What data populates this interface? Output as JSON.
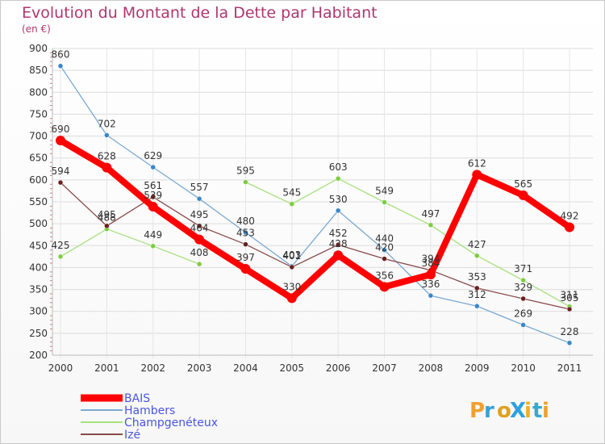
{
  "chart_data": {
    "type": "line",
    "title": "Evolution du Montant de la Dette par Habitant",
    "subtitle": "(en €)",
    "x": [
      "2000",
      "2001",
      "2002",
      "2003",
      "2004",
      "2005",
      "2006",
      "2007",
      "2008",
      "2009",
      "2010",
      "2011"
    ],
    "ylim": [
      200,
      900
    ],
    "yticks": [
      200,
      250,
      300,
      350,
      400,
      450,
      500,
      550,
      600,
      650,
      700,
      750,
      800,
      850,
      900
    ],
    "grid": true,
    "legend_position": "bottom-left",
    "series": [
      {
        "name": "BAIS",
        "color": "#ff0000",
        "point_color": "#ff0000",
        "values": [
          690,
          628,
          539,
          464,
          397,
          330,
          428,
          356,
          384,
          612,
          565,
          492
        ]
      },
      {
        "name": "Hambers",
        "color": "#7aa9d3",
        "point_color": "#3a87c8",
        "values": [
          860,
          702,
          629,
          557,
          480,
          403,
          530,
          440,
          336,
          312,
          269,
          228
        ]
      },
      {
        "name": "Champgenéteux",
        "color": "#a6e17d",
        "point_color": "#7ccd40",
        "values": [
          425,
          488,
          449,
          408,
          595,
          545,
          603,
          549,
          497,
          427,
          371,
          311
        ]
      },
      {
        "name": "Izé",
        "color": "#8a4a4a",
        "point_color": "#6b1f1f",
        "values": [
          594,
          495,
          561,
          495,
          453,
          401,
          452,
          420,
          394,
          353,
          329,
          305
        ]
      }
    ]
  },
  "logo": {
    "text": "ProXiti"
  }
}
